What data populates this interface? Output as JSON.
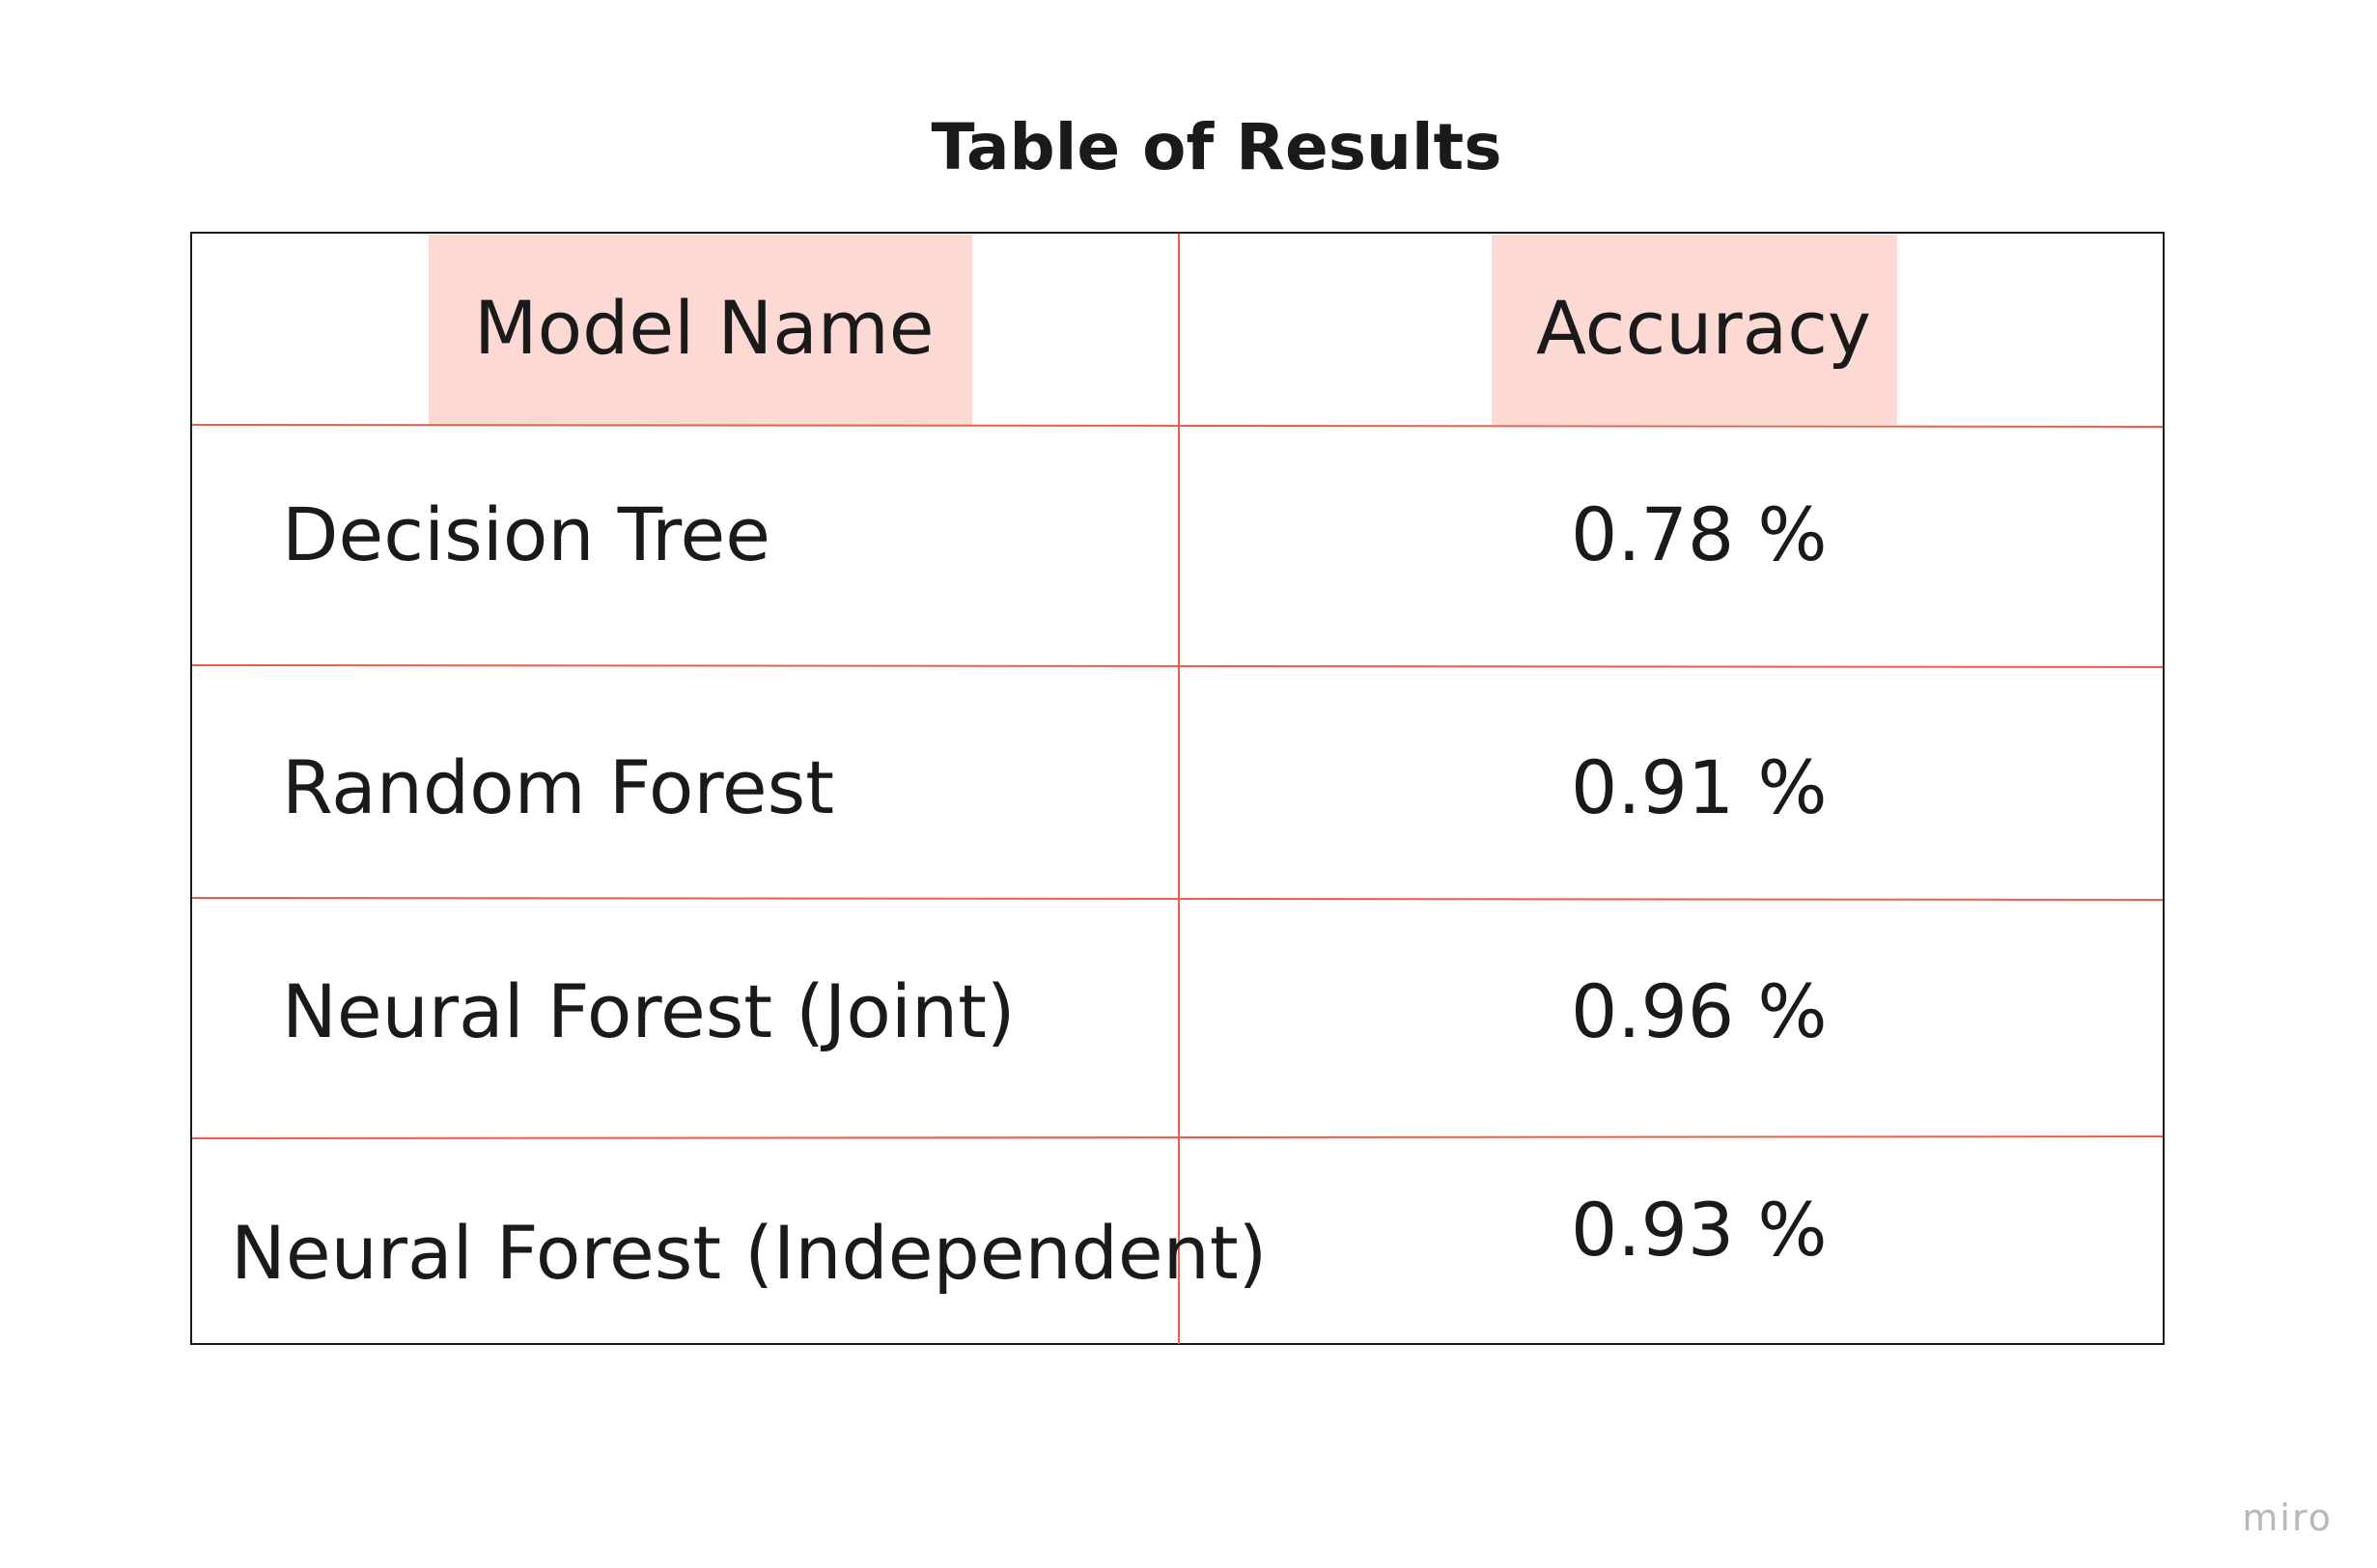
{
  "title": "Table of Results",
  "table": {
    "headers": {
      "model": "Model Name",
      "accuracy": "Accuracy"
    },
    "rows": [
      {
        "model": "Decision Tree",
        "accuracy": "0.78 %"
      },
      {
        "model": "Random Forest",
        "accuracy": "0.91 %"
      },
      {
        "model": "Neural Forest (Joint)",
        "accuracy": "0.96 %"
      },
      {
        "model": "Neural Forest (Independent)",
        "accuracy": "0.93 %"
      }
    ]
  },
  "colors": {
    "grid_line": "#e8604a",
    "outer_border": "#1a1a1a",
    "header_highlight": "#fdd9d3",
    "text": "#1a1a1a",
    "watermark": "#b9b9b9"
  },
  "watermark": "miro"
}
